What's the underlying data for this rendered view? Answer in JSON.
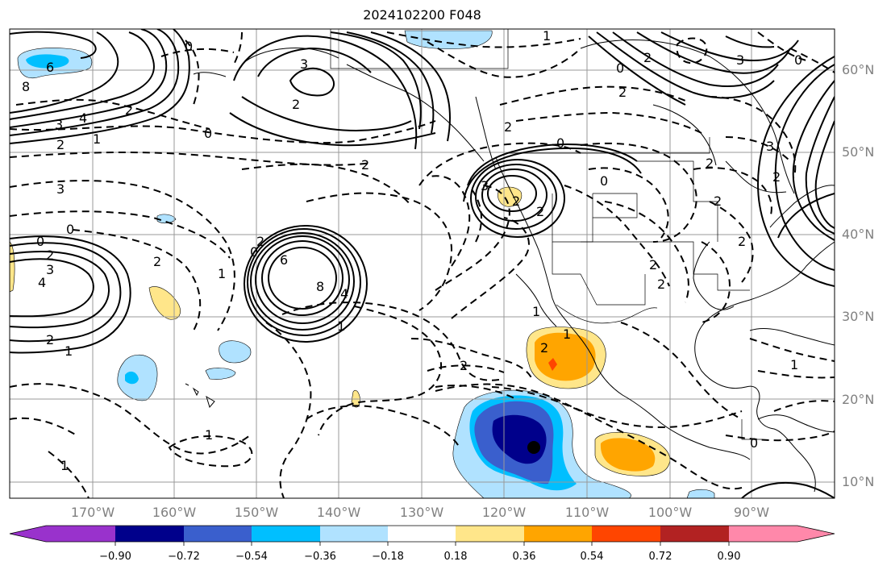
{
  "title": "2024102200 F048",
  "lat_labels": [
    "60°N",
    "50°N",
    "40°N",
    "30°N",
    "20°N",
    "10°N"
  ],
  "lon_labels": [
    "170°W",
    "160°W",
    "150°W",
    "140°W",
    "130°W",
    "120°W",
    "110°W",
    "100°W",
    "90°W"
  ],
  "colorbar": {
    "tick_labels": [
      "−0.90",
      "−0.72",
      "−0.54",
      "−0.36",
      "−0.18",
      "0.18",
      "0.36",
      "0.54",
      "0.72",
      "0.90"
    ],
    "colors": [
      "#9932cc",
      "#00008b",
      "#3a5fcd",
      "#00bfff",
      "#b0e2ff",
      "#ffffff",
      "#ffe68a",
      "#ffa500",
      "#ff4500",
      "#b22222",
      "#ff88aa"
    ]
  },
  "contour_labels": [
    "6",
    "8",
    "4",
    "3",
    "2",
    "0",
    "0",
    "2",
    "1",
    "3",
    "0",
    "2",
    "4",
    "3",
    "2",
    "1",
    "0",
    "2",
    "2",
    "3",
    "6",
    "8",
    "4",
    "0",
    "2",
    "1",
    "2",
    "2",
    "1",
    "1",
    "3",
    "0",
    "0",
    "2",
    "2",
    "2",
    "3",
    "1",
    "0",
    "2",
    "1",
    "2",
    "2",
    "2",
    "1",
    "0",
    "2",
    "2",
    "3",
    "2",
    "0",
    "2",
    "2",
    "1",
    "1"
  ]
}
